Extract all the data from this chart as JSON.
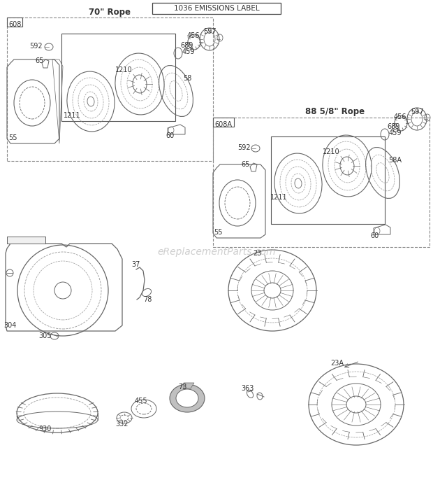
{
  "title": "1036 EMISSIONS LABEL",
  "bg_color": "#ffffff",
  "line_color": "#666666",
  "text_color": "#333333",
  "watermark": "eReplacementParts.com",
  "box1_title": "70\" Rope",
  "box1_label": "608",
  "box2_title": "88 5/8\" Rope",
  "box2_label": "608A",
  "fig_width": 6.2,
  "fig_height": 6.93,
  "dpi": 100
}
